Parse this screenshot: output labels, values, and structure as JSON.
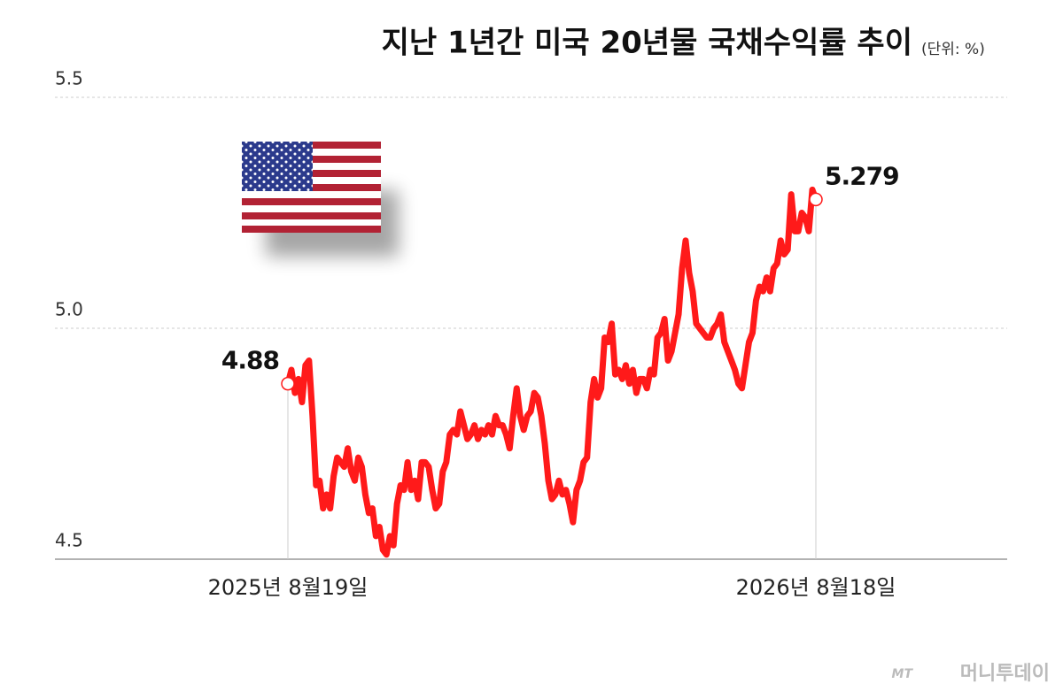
{
  "chart_data": {
    "type": "line",
    "title": "지난 1년간 미국 20년물 국채수익률 추이",
    "unit": "(단위: %)",
    "source_logo": "MT",
    "source": "머니투데이",
    "categories": [
      "2025년 8월19일",
      null,
      null,
      null,
      null,
      null,
      null,
      null,
      null,
      null,
      null,
      null,
      null,
      null,
      null,
      null,
      null,
      null,
      null,
      null,
      null,
      null,
      null,
      null,
      null,
      null,
      null,
      null,
      null,
      null,
      null,
      null,
      null,
      null,
      null,
      null,
      null,
      null,
      null,
      null,
      null,
      null,
      null,
      null,
      null,
      null,
      null,
      null,
      null,
      null,
      null,
      null,
      null,
      null,
      null,
      null,
      null,
      null,
      null,
      null,
      null,
      null,
      null,
      null,
      null,
      null,
      null,
      null,
      null,
      null,
      null,
      null,
      null,
      null,
      null,
      null,
      null,
      null,
      null,
      null,
      null,
      null,
      null,
      null,
      null,
      null,
      null,
      null,
      null,
      null,
      null,
      null,
      null,
      null,
      null,
      null,
      null,
      null,
      null,
      null,
      null,
      null,
      null,
      null,
      null,
      null,
      null,
      null,
      null,
      null,
      null,
      null,
      null,
      null,
      null,
      null,
      null,
      null,
      null,
      null,
      null,
      null,
      null,
      null,
      null,
      null,
      null,
      null,
      null,
      null,
      null,
      null,
      null,
      null,
      null,
      null,
      null,
      null,
      null,
      null,
      null,
      null,
      null,
      null,
      null,
      null,
      null,
      null,
      null,
      null,
      "2026년 8월18일"
    ],
    "series": [
      {
        "color": "#ff1a1a",
        "values": [
          4.88,
          4.91,
          4.86,
          4.89,
          4.84,
          4.92,
          4.93,
          4.81,
          4.66,
          4.67,
          4.61,
          4.64,
          4.61,
          4.68,
          4.72,
          4.71,
          4.7,
          4.74,
          4.69,
          4.67,
          4.72,
          4.7,
          4.64,
          4.6,
          4.61,
          4.55,
          4.57,
          4.52,
          4.51,
          4.55,
          4.53,
          4.62,
          4.66,
          4.65,
          4.71,
          4.65,
          4.67,
          4.63,
          4.71,
          4.71,
          4.7,
          4.65,
          4.61,
          4.62,
          4.69,
          4.71,
          4.77,
          4.78,
          4.77,
          4.82,
          4.79,
          4.76,
          4.77,
          4.79,
          4.76,
          4.78,
          4.77,
          4.79,
          4.77,
          4.81,
          4.79,
          4.79,
          4.77,
          4.74,
          4.81,
          4.87,
          4.81,
          4.78,
          4.81,
          4.82,
          4.86,
          4.85,
          4.81,
          4.75,
          4.67,
          4.63,
          4.64,
          4.67,
          4.64,
          4.65,
          4.62,
          4.58,
          4.65,
          4.67,
          4.71,
          4.72,
          4.84,
          4.89,
          4.85,
          4.87,
          4.98,
          4.97,
          5.01,
          4.9,
          4.91,
          4.89,
          4.92,
          4.88,
          4.91,
          4.86,
          4.89,
          4.89,
          4.87,
          4.91,
          4.9,
          4.98,
          4.99,
          5.02,
          4.93,
          4.95,
          4.99,
          5.03,
          5.13,
          5.19,
          5.12,
          5.08,
          5.01,
          5.0,
          4.99,
          4.98,
          4.98,
          5.0,
          5.01,
          5.03,
          4.97,
          4.95,
          4.93,
          4.91,
          4.88,
          4.87,
          4.92,
          4.97,
          4.99,
          5.06,
          5.09,
          5.08,
          5.11,
          5.08,
          5.13,
          5.14,
          5.19,
          5.16,
          5.17,
          5.29,
          5.21,
          5.21,
          5.25,
          5.24,
          5.21,
          5.3,
          5.279
        ]
      }
    ],
    "labeled_points": [
      0,
      150
    ],
    "ylim": [
      4.5,
      5.5
    ],
    "yticks": [
      4.5,
      {
        "value": 5,
        "label": "5.0"
      },
      5.5
    ],
    "grid": true
  }
}
